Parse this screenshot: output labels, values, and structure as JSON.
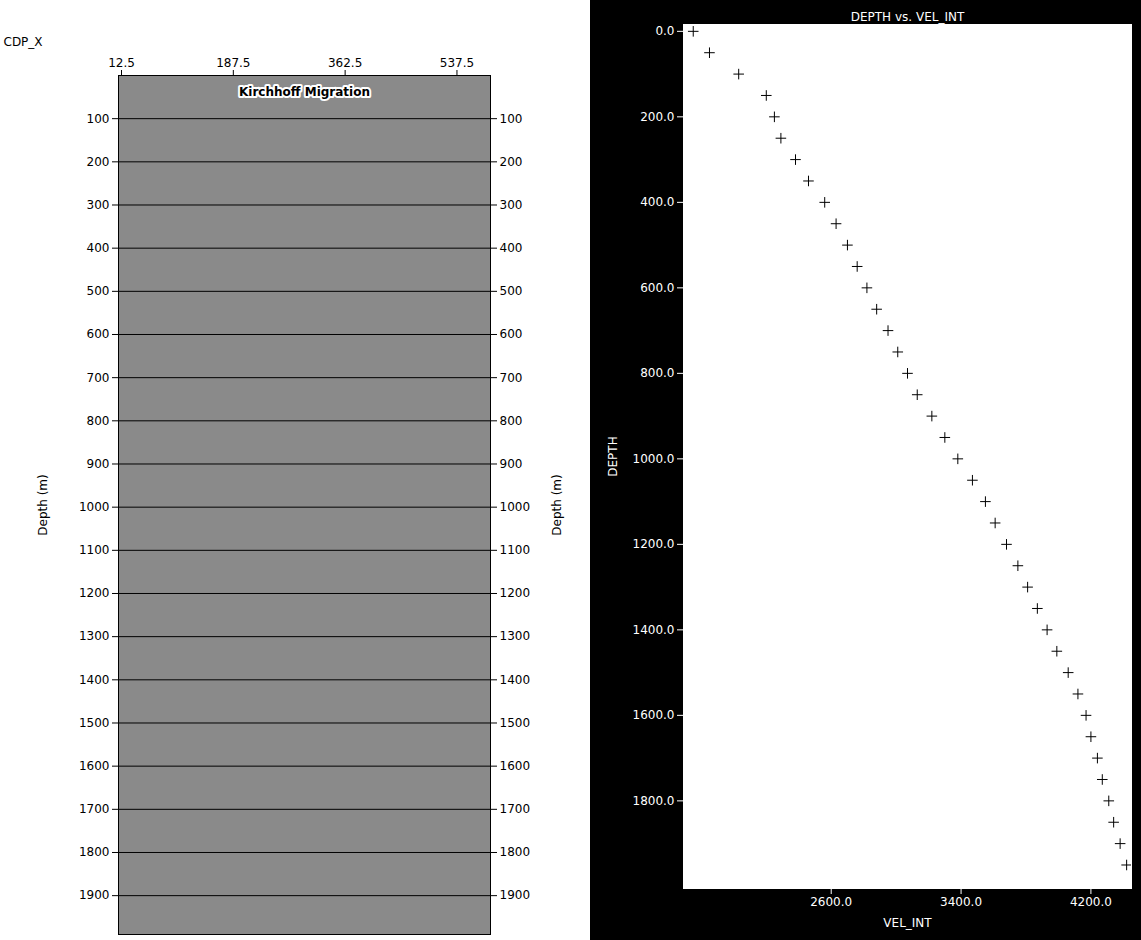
{
  "chart_data": [
    {
      "type": "image",
      "title": "Kirchhoff Migration",
      "xlabel": "CDP_X",
      "ylabel": "Depth (m)",
      "xlim": [
        7.8,
        590
      ],
      "xticks": [
        12.5,
        187.5,
        362.5,
        537.5
      ],
      "ylim": [
        0,
        1990
      ],
      "yticks": [
        100,
        200,
        300,
        400,
        500,
        600,
        700,
        800,
        900,
        1000,
        1100,
        1200,
        1300,
        1400,
        1500,
        1600,
        1700,
        1800,
        1900
      ],
      "grid": true,
      "color": "#8a8a8a"
    },
    {
      "type": "scatter",
      "title": "DEPTH vs. VEL_INT",
      "xlabel": "VEL_INT",
      "ylabel": "DEPTH",
      "x": [
        1750,
        1850,
        2030,
        2200,
        2250,
        2290,
        2380,
        2460,
        2560,
        2630,
        2700,
        2760,
        2820,
        2880,
        2950,
        3010,
        3070,
        3130,
        3220,
        3300,
        3380,
        3470,
        3550,
        3610,
        3680,
        3750,
        3810,
        3870,
        3930,
        3990,
        4060,
        4120,
        4170,
        4200,
        4240,
        4270,
        4310,
        4340,
        4380,
        4420
      ],
      "values": [
        0,
        50,
        100,
        150,
        200,
        250,
        300,
        350,
        400,
        450,
        500,
        550,
        600,
        650,
        700,
        750,
        800,
        850,
        900,
        950,
        1000,
        1050,
        1100,
        1150,
        1200,
        1250,
        1300,
        1350,
        1400,
        1450,
        1500,
        1550,
        1600,
        1650,
        1700,
        1750,
        1800,
        1850,
        1900,
        1950
      ],
      "xlim": [
        1690,
        4450
      ],
      "xticks": [
        {
          "value": 2600,
          "label": "2600.0"
        },
        {
          "value": 3400,
          "label": "3400.0"
        },
        {
          "value": 4200,
          "label": "4200.0"
        }
      ],
      "ylim": [
        -16,
        2005
      ],
      "yticks": [
        {
          "value": 0,
          "label": "0.0"
        },
        {
          "value": 200,
          "label": "200.0"
        },
        {
          "value": 400,
          "label": "400.0"
        },
        {
          "value": 600,
          "label": "600.0"
        },
        {
          "value": 800,
          "label": "800.0"
        },
        {
          "value": 1000,
          "label": "1000.0"
        },
        {
          "value": 1200,
          "label": "1200.0"
        },
        {
          "value": 1400,
          "label": "1400.0"
        },
        {
          "value": 1600,
          "label": "1600.0"
        },
        {
          "value": 1800,
          "label": "1800.0"
        }
      ],
      "marker": "plus",
      "color": "#000000",
      "grid": false
    }
  ]
}
